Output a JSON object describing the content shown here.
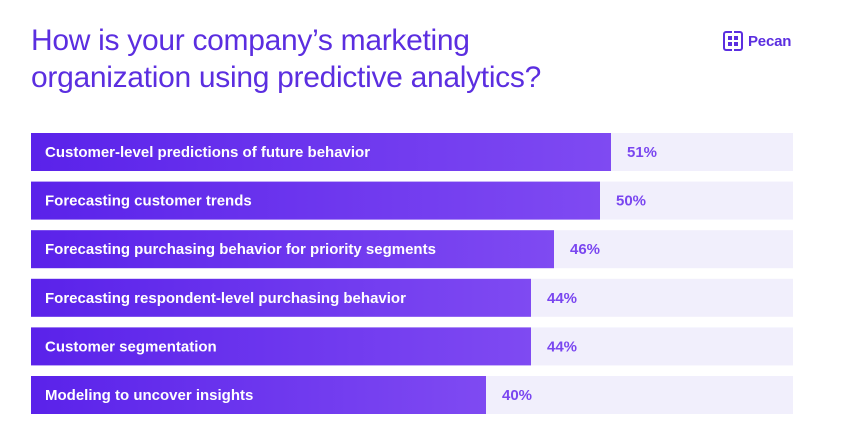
{
  "title": "How is your company’s marketing organization using predictive analytics?",
  "brand": {
    "name": "Pecan",
    "logo_icon": "pecan-logo-icon"
  },
  "colors": {
    "title": "#5b2ee0",
    "bar_start": "#5a22ea",
    "bar_end": "#7f4af2",
    "track": "#f1effc",
    "value_label": "#7a46f0",
    "bar_label": "#ffffff"
  },
  "chart_data": {
    "type": "bar",
    "orientation": "horizontal",
    "categories": [
      "Customer-level predictions of future behavior",
      "Forecasting customer trends",
      "Forecasting purchasing behavior for priority segments",
      "Forecasting respondent-level purchasing behavior",
      "Customer segmentation",
      "Modeling to uncover insights"
    ],
    "values": [
      51,
      50,
      46,
      44,
      44,
      40
    ],
    "value_labels": [
      "51%",
      "50%",
      "46%",
      "44%",
      "44%",
      "40%"
    ],
    "unit": "%",
    "xlim": [
      0,
      67
    ],
    "grid": false,
    "legend": "none"
  }
}
